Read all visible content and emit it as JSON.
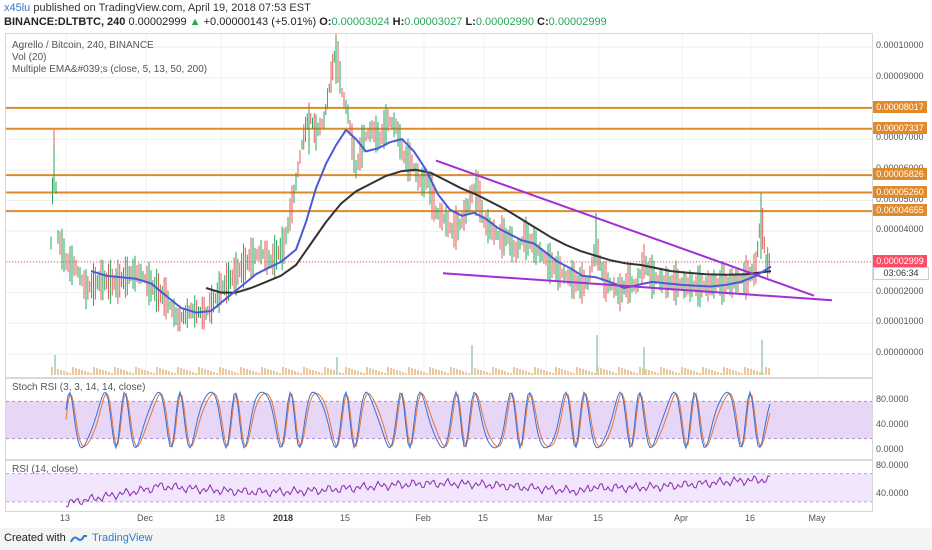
{
  "header": {
    "user": "x45lu",
    "published": "published on TradingView.com, April 19, 2018 07:53 EST",
    "symbol": "BINANCE:DLTBTC, 240",
    "last": "0.00002999",
    "change": "+0.00000143 (+5.01%)",
    "o_label": "O:",
    "o": "0.00003024",
    "h_label": "H:",
    "h": "0.00003027",
    "l_label": "L:",
    "l": "0.00002990",
    "c_label": "C:",
    "c": "0.00002999"
  },
  "main_legend": {
    "title": "Agrello / Bitcoin, 240, BINANCE",
    "vol": "Vol (20)",
    "ema": "Multiple EMA&#039;s (close, 5, 13, 50, 200)"
  },
  "stoch_legend": "Stoch RSI (3, 3, 14, 14, close)",
  "rsi_legend": "RSI (14, close)",
  "footer": {
    "created": "Created with",
    "brand": "TradingView"
  },
  "colors": {
    "price": "#26a65b",
    "ema_fast": "#4a5bd6",
    "ema_slow": "#333333",
    "horizontal": "#e08a2a",
    "trend": "#a12fd6",
    "stoch_band": "#e8d6f7",
    "rsi_band": "#f1e6fb",
    "last_label": "#ff4a68"
  },
  "chart_data": [
    {
      "type": "line",
      "name": "price",
      "yaxis_ticks": [
        "0.00010000",
        "0.00009000",
        "0.00008000",
        "0.00007000",
        "0.00006000",
        "0.00005000",
        "0.00004000",
        "0.00003000",
        "0.00002000",
        "0.00001000",
        "0.00000000"
      ],
      "ylim": [
        0.0,
        0.000105
      ],
      "x_labels": [
        "13",
        "Dec",
        "18",
        "2018",
        "15",
        "Feb",
        "15",
        "Mar",
        "15",
        "Apr",
        "16",
        "May"
      ],
      "x_label_pos": [
        60,
        140,
        215,
        278,
        340,
        418,
        478,
        540,
        593,
        676,
        745,
        812
      ],
      "horizontal_levels": [
        {
          "value": 8.017e-05,
          "label": "0.00008017"
        },
        {
          "value": 7.337e-05,
          "label": "0.00007337"
        },
        {
          "value": 5.826e-05,
          "label": "0.00005826"
        },
        {
          "value": 5.26e-05,
          "label": "0.00005260"
        },
        {
          "value": 4.655e-05,
          "label": "0.00004655"
        }
      ],
      "last_price": {
        "value": 2.999e-05,
        "label": "0.00002999",
        "countdown": "03:06:34"
      },
      "trendlines": [
        {
          "from": [
            430,
            6.3e-05
          ],
          "to": [
            808,
            1.9e-05
          ]
        },
        {
          "from": [
            437,
            2.63e-05
          ],
          "to": [
            826,
            1.75e-05
          ]
        }
      ],
      "price_points": [
        [
          45,
          3.6e-05
        ],
        [
          48,
          7e-05
        ],
        [
          52,
          3.8e-05
        ],
        [
          60,
          3e-05
        ],
        [
          70,
          2.8e-05
        ],
        [
          80,
          2.1e-05
        ],
        [
          95,
          2.4e-05
        ],
        [
          110,
          2.3e-05
        ],
        [
          125,
          2.6e-05
        ],
        [
          135,
          2.6e-05
        ],
        [
          145,
          2.2e-05
        ],
        [
          160,
          1.8e-05
        ],
        [
          172,
          1.1e-05
        ],
        [
          185,
          1.4e-05
        ],
        [
          200,
          1.3e-05
        ],
        [
          215,
          2.1e-05
        ],
        [
          230,
          2.6e-05
        ],
        [
          245,
          3.1e-05
        ],
        [
          255,
          3.3e-05
        ],
        [
          265,
          3e-05
        ],
        [
          278,
          3.5e-05
        ],
        [
          288,
          5.2e-05
        ],
        [
          296,
          6.8e-05
        ],
        [
          303,
          7.8e-05
        ],
        [
          310,
          7.2e-05
        ],
        [
          318,
          7.6e-05
        ],
        [
          325,
          9e-05
        ],
        [
          330,
          0.0001
        ],
        [
          336,
          8.5e-05
        ],
        [
          342,
          7.8e-05
        ],
        [
          350,
          6e-05
        ],
        [
          358,
          7e-05
        ],
        [
          366,
          7.3e-05
        ],
        [
          374,
          7e-05
        ],
        [
          382,
          7.6e-05
        ],
        [
          390,
          7.4e-05
        ],
        [
          398,
          6.4e-05
        ],
        [
          406,
          6.2e-05
        ],
        [
          414,
          5.6e-05
        ],
        [
          422,
          5.6e-05
        ],
        [
          430,
          4.6e-05
        ],
        [
          438,
          4.4e-05
        ],
        [
          446,
          4e-05
        ],
        [
          454,
          4.2e-05
        ],
        [
          462,
          4.8e-05
        ],
        [
          470,
          5.6e-05
        ],
        [
          478,
          4.3e-05
        ],
        [
          486,
          4e-05
        ],
        [
          494,
          3.8e-05
        ],
        [
          502,
          3.8e-05
        ],
        [
          510,
          3.3e-05
        ],
        [
          518,
          3.8e-05
        ],
        [
          526,
          3.6e-05
        ],
        [
          534,
          3.3e-05
        ],
        [
          542,
          3e-05
        ],
        [
          552,
          2.7e-05
        ],
        [
          562,
          2.5e-05
        ],
        [
          572,
          2.3e-05
        ],
        [
          582,
          2.3e-05
        ],
        [
          590,
          3.5e-05
        ],
        [
          598,
          2.4e-05
        ],
        [
          606,
          2.2e-05
        ],
        [
          614,
          2e-05
        ],
        [
          622,
          2.3e-05
        ],
        [
          630,
          2.2e-05
        ],
        [
          638,
          3e-05
        ],
        [
          646,
          2.5e-05
        ],
        [
          654,
          2.4e-05
        ],
        [
          662,
          2.3e-05
        ],
        [
          672,
          2.3e-05
        ],
        [
          682,
          2.2e-05
        ],
        [
          692,
          2.2e-05
        ],
        [
          702,
          2.2e-05
        ],
        [
          712,
          2.3e-05
        ],
        [
          722,
          2.3e-05
        ],
        [
          732,
          2.4e-05
        ],
        [
          742,
          2.5e-05
        ],
        [
          750,
          2.8e-05
        ],
        [
          755,
          4.6e-05
        ],
        [
          760,
          3e-05
        ],
        [
          765,
          2.9e-05
        ]
      ],
      "ema_fast_points": [
        [
          85,
          2.7e-05
        ],
        [
          100,
          2.55e-05
        ],
        [
          115,
          2.5e-05
        ],
        [
          130,
          2.45e-05
        ],
        [
          145,
          2.3e-05
        ],
        [
          160,
          1.9e-05
        ],
        [
          175,
          1.5e-05
        ],
        [
          190,
          1.35e-05
        ],
        [
          205,
          1.4e-05
        ],
        [
          220,
          1.8e-05
        ],
        [
          235,
          2.2e-05
        ],
        [
          250,
          2.6e-05
        ],
        [
          262,
          2.8e-05
        ],
        [
          275,
          3e-05
        ],
        [
          290,
          3.4e-05
        ],
        [
          300,
          4.3e-05
        ],
        [
          310,
          5.4e-05
        ],
        [
          320,
          6.2e-05
        ],
        [
          330,
          6.8e-05
        ],
        [
          340,
          7.3e-05
        ],
        [
          350,
          7e-05
        ],
        [
          360,
          6.6e-05
        ],
        [
          372,
          6.7e-05
        ],
        [
          384,
          6.9e-05
        ],
        [
          396,
          7e-05
        ],
        [
          408,
          6.6e-05
        ],
        [
          420,
          6e-05
        ],
        [
          432,
          5.2e-05
        ],
        [
          444,
          4.7e-05
        ],
        [
          456,
          4.5e-05
        ],
        [
          468,
          4.6e-05
        ],
        [
          480,
          4.4e-05
        ],
        [
          492,
          4.1e-05
        ],
        [
          504,
          3.9e-05
        ],
        [
          516,
          3.7e-05
        ],
        [
          528,
          3.6e-05
        ],
        [
          540,
          3.3e-05
        ],
        [
          552,
          3e-05
        ],
        [
          564,
          2.8e-05
        ],
        [
          576,
          2.55e-05
        ],
        [
          590,
          2.5e-05
        ],
        [
          604,
          2.35e-05
        ],
        [
          618,
          2.15e-05
        ],
        [
          632,
          2.25e-05
        ],
        [
          646,
          2.35e-05
        ],
        [
          660,
          2.3e-05
        ],
        [
          676,
          2.25e-05
        ],
        [
          690,
          2.22e-05
        ],
        [
          705,
          2.2e-05
        ],
        [
          720,
          2.25e-05
        ],
        [
          735,
          2.35e-05
        ],
        [
          750,
          2.55e-05
        ],
        [
          765,
          2.85e-05
        ]
      ],
      "ema_slow_points": [
        [
          200,
          2.15e-05
        ],
        [
          215,
          2e-05
        ],
        [
          230,
          2e-05
        ],
        [
          245,
          2.15e-05
        ],
        [
          260,
          2.35e-05
        ],
        [
          275,
          2.55e-05
        ],
        [
          290,
          2.9e-05
        ],
        [
          305,
          3.6e-05
        ],
        [
          320,
          4.3e-05
        ],
        [
          335,
          4.9e-05
        ],
        [
          350,
          5.3e-05
        ],
        [
          365,
          5.55e-05
        ],
        [
          380,
          5.8e-05
        ],
        [
          395,
          5.95e-05
        ],
        [
          410,
          6e-05
        ],
        [
          425,
          5.9e-05
        ],
        [
          440,
          5.65e-05
        ],
        [
          455,
          5.4e-05
        ],
        [
          470,
          5.2e-05
        ],
        [
          485,
          4.95e-05
        ],
        [
          500,
          4.7e-05
        ],
        [
          515,
          4.4e-05
        ],
        [
          530,
          4.1e-05
        ],
        [
          545,
          3.8e-05
        ],
        [
          560,
          3.55e-05
        ],
        [
          575,
          3.35e-05
        ],
        [
          590,
          3.2e-05
        ],
        [
          605,
          3.05e-05
        ],
        [
          620,
          2.95e-05
        ],
        [
          635,
          2.9e-05
        ],
        [
          650,
          2.8e-05
        ],
        [
          665,
          2.7e-05
        ],
        [
          680,
          2.65e-05
        ],
        [
          700,
          2.6e-05
        ],
        [
          720,
          2.58e-05
        ],
        [
          740,
          2.6e-05
        ],
        [
          765,
          2.7e-05
        ]
      ]
    },
    {
      "type": "line",
      "name": "stoch-rsi",
      "yaxis_ticks": [
        "80.0000",
        "40.0000",
        "0.0000"
      ],
      "ylim": [
        0,
        100
      ],
      "band": [
        20,
        80
      ],
      "cycles": 52
    },
    {
      "type": "line",
      "name": "rsi",
      "yaxis_ticks": [
        "80.0000",
        "40.0000"
      ],
      "ylim": [
        20,
        85
      ],
      "band": [
        30,
        70
      ]
    }
  ]
}
